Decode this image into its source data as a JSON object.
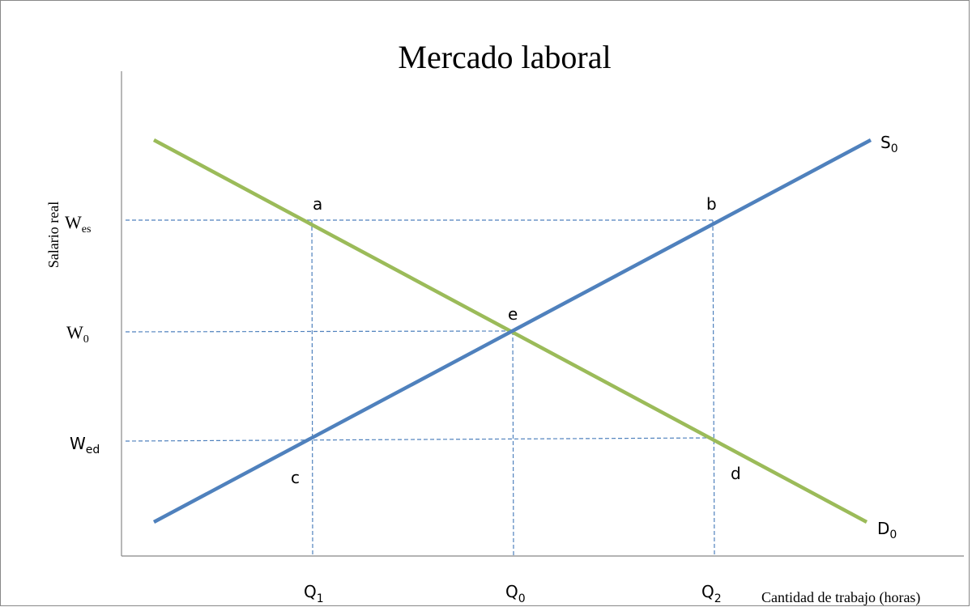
{
  "title": "Mercado laboral",
  "y_axis_label": "Salario real",
  "x_axis_label": "Cantidad de trabajo (horas)",
  "y_labels": [
    {
      "main": "W",
      "sub": "es"
    },
    {
      "main": "W",
      "sub": "0"
    },
    {
      "main": "W",
      "sub": "ed"
    }
  ],
  "x_labels": [
    {
      "main": "Q",
      "sub": "1"
    },
    {
      "main": "Q",
      "sub": "0"
    },
    {
      "main": "Q",
      "sub": "2"
    }
  ],
  "points": [
    "a",
    "b",
    "e",
    "c",
    "d"
  ],
  "curves": [
    {
      "main": "S",
      "sub": "0"
    },
    {
      "main": "D",
      "sub": "0"
    }
  ]
}
